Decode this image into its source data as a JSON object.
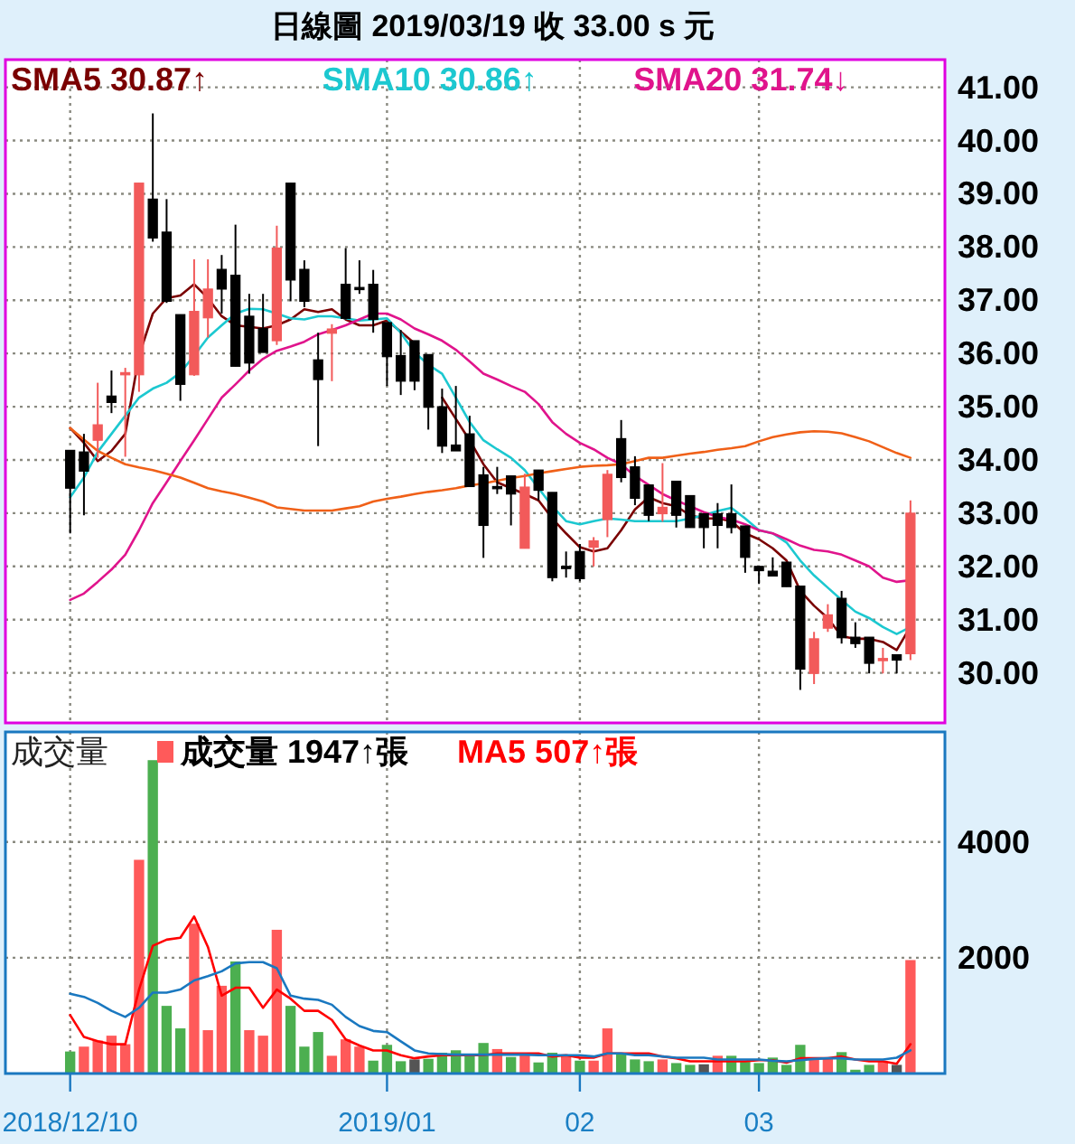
{
  "chart_data": [
    {
      "type": "candlestick",
      "title": "日線圖 2019/03/19 收 33.00 s 元",
      "categories": [
        "2018/12/10",
        null,
        null,
        null,
        null,
        null,
        null,
        null,
        null,
        null,
        null,
        null,
        null,
        null,
        null,
        null,
        null,
        null,
        null,
        null,
        null,
        null,
        null,
        "2019/01",
        null,
        null,
        null,
        null,
        null,
        null,
        null,
        null,
        null,
        null,
        null,
        null,
        null,
        "02",
        null,
        null,
        null,
        null,
        null,
        null,
        null,
        null,
        null,
        null,
        null,
        null,
        "03",
        null,
        null,
        null,
        null,
        null,
        null,
        null,
        null,
        null,
        null,
        null
      ],
      "ohlc": [
        [
          34.18,
          34.18,
          32.62,
          33.47
        ],
        [
          34.15,
          34.49,
          32.96,
          33.79
        ],
        [
          34.37,
          35.45,
          34.04,
          34.66
        ],
        [
          35.2,
          35.68,
          34.88,
          35.08
        ],
        [
          35.62,
          35.73,
          34.06,
          35.64
        ],
        [
          35.6,
          39.2,
          35.28,
          39.2
        ],
        [
          38.9,
          40.51,
          38.1,
          38.17
        ],
        [
          38.28,
          38.9,
          36.95,
          36.98
        ],
        [
          36.73,
          36.73,
          35.11,
          35.42
        ],
        [
          35.6,
          37.77,
          35.58,
          36.79
        ],
        [
          36.67,
          37.77,
          36.3,
          37.21
        ],
        [
          37.58,
          37.85,
          36.75,
          37.21
        ],
        [
          37.47,
          38.42,
          35.76,
          35.76
        ],
        [
          36.7,
          37.12,
          35.62,
          35.82
        ],
        [
          36.47,
          37.12,
          36.02,
          36.02
        ],
        [
          36.24,
          38.4,
          36.16,
          37.98
        ],
        [
          39.2,
          39.2,
          36.98,
          37.38
        ],
        [
          37.58,
          37.75,
          36.87,
          36.98
        ],
        [
          35.88,
          36.39,
          34.26,
          35.51
        ],
        [
          36.38,
          36.55,
          35.48,
          36.46
        ],
        [
          37.3,
          37.98,
          36.64,
          36.66
        ],
        [
          37.24,
          37.75,
          37.12,
          37.2
        ],
        [
          37.3,
          37.57,
          36.39,
          36.64
        ],
        [
          36.58,
          36.58,
          35.39,
          35.94
        ],
        [
          35.96,
          36.44,
          35.22,
          35.48
        ],
        [
          36.24,
          36.24,
          35.31,
          35.48
        ],
        [
          35.98,
          35.98,
          34.57,
          34.99
        ],
        [
          35.0,
          35.34,
          34.13,
          34.26
        ],
        [
          34.28,
          35.39,
          34.17,
          34.17
        ],
        [
          34.49,
          34.83,
          33.5,
          33.5
        ],
        [
          33.72,
          33.87,
          32.16,
          32.77
        ],
        [
          33.5,
          33.87,
          33.36,
          33.48
        ],
        [
          33.7,
          33.7,
          32.77,
          33.36
        ],
        [
          32.34,
          33.74,
          32.34,
          33.49
        ],
        [
          33.81,
          33.81,
          33.24,
          33.43
        ],
        [
          33.39,
          33.39,
          31.72,
          31.79
        ],
        [
          32.0,
          32.28,
          31.79,
          31.99
        ],
        [
          32.28,
          32.42,
          31.72,
          31.77
        ],
        [
          32.36,
          32.55,
          32.0,
          32.48
        ],
        [
          32.88,
          33.81,
          32.55,
          33.73
        ],
        [
          34.4,
          34.75,
          33.58,
          33.67
        ],
        [
          33.87,
          34.07,
          33.15,
          33.28
        ],
        [
          33.53,
          33.53,
          32.85,
          32.96
        ],
        [
          32.99,
          33.94,
          32.84,
          33.11
        ],
        [
          33.6,
          33.6,
          32.73,
          32.96
        ],
        [
          33.33,
          33.33,
          32.73,
          32.73
        ],
        [
          32.99,
          32.99,
          32.34,
          32.73
        ],
        [
          32.99,
          33.19,
          32.34,
          32.77
        ],
        [
          32.99,
          33.54,
          32.62,
          32.73
        ],
        [
          32.76,
          32.76,
          31.88,
          32.17
        ],
        [
          32.0,
          32.0,
          31.67,
          31.92
        ],
        [
          31.91,
          32.17,
          31.82,
          31.82
        ],
        [
          32.08,
          32.08,
          31.62,
          31.62
        ],
        [
          31.63,
          31.63,
          29.68,
          30.07
        ],
        [
          29.99,
          30.77,
          29.79,
          30.64
        ],
        [
          30.84,
          31.29,
          30.77,
          31.09
        ],
        [
          31.4,
          31.54,
          30.55,
          30.66
        ],
        [
          30.67,
          30.95,
          30.47,
          30.55
        ],
        [
          30.67,
          30.67,
          29.99,
          30.18
        ],
        [
          30.25,
          30.47,
          29.99,
          30.27
        ],
        [
          30.34,
          30.34,
          29.99,
          30.24
        ],
        [
          30.36,
          33.24,
          30.24,
          33.0
        ]
      ],
      "colors": [
        "#000000",
        "#000000",
        "#f25a5a",
        "#000000",
        "#f25a5a",
        "#f25a5a",
        "#000000",
        "#000000",
        "#000000",
        "#f25a5a",
        "#f25a5a",
        "#000000",
        "#000000",
        "#000000",
        "#000000",
        "#f25a5a",
        "#000000",
        "#000000",
        "#000000",
        "#f25a5a",
        "#000000",
        "#000000",
        "#000000",
        "#000000",
        "#000000",
        "#000000",
        "#000000",
        "#000000",
        "#000000",
        "#000000",
        "#000000",
        "#000000",
        "#000000",
        "#f25a5a",
        "#000000",
        "#000000",
        "#000000",
        "#000000",
        "#f25a5a",
        "#f25a5a",
        "#000000",
        "#000000",
        "#000000",
        "#f25a5a",
        "#000000",
        "#000000",
        "#000000",
        "#000000",
        "#000000",
        "#000000",
        "#000000",
        "#000000",
        "#000000",
        "#000000",
        "#f25a5a",
        "#f25a5a",
        "#000000",
        "#000000",
        "#000000",
        "#f25a5a",
        "#000000",
        "#f25a5a"
      ],
      "series": [
        {
          "name": "SMA5 30.87↑",
          "type": "line",
          "color": "#7a0000",
          "values": [
            34.6,
            34.32,
            33.98,
            34.17,
            34.49,
            35.96,
            36.75,
            37.04,
            37.09,
            37.3,
            37.04,
            36.7,
            36.53,
            36.5,
            36.47,
            36.53,
            36.64,
            36.83,
            36.78,
            36.83,
            36.64,
            36.53,
            36.53,
            36.62,
            36.41,
            36.19,
            null,
            35.17,
            34.77,
            34.37,
            33.92,
            33.58,
            33.47,
            33.36,
            33.24,
            32.9,
            32.62,
            32.36,
            32.28,
            32.34,
            32.68,
            33.07,
            33.3,
            33.19,
            33.13,
            32.96,
            32.9,
            32.9,
            32.85,
            32.62,
            32.51,
            32.34,
            32.11,
            31.54,
            31.26,
            31.03,
            30.69,
            30.64,
            30.64,
            30.58,
            30.43,
            30.87
          ]
        },
        {
          "name": "SMA10 30.86↑",
          "type": "line",
          "color": "#1cc8d0",
          "values": [
            33.3,
            33.67,
            34.15,
            34.49,
            34.83,
            35.17,
            35.34,
            35.45,
            35.64,
            35.96,
            36.3,
            36.53,
            36.75,
            36.84,
            36.83,
            36.75,
            36.66,
            36.64,
            36.7,
            36.7,
            36.66,
            36.62,
            36.64,
            36.66,
            36.39,
            36.02,
            35.79,
            35.62,
            35.17,
            34.71,
            34.37,
            34.2,
            34.04,
            33.81,
            33.47,
            33.13,
            32.85,
            32.79,
            32.85,
            32.9,
            32.88,
            32.85,
            32.85,
            32.85,
            32.85,
            32.9,
            32.96,
            33.04,
            33.1,
            32.9,
            32.68,
            32.62,
            32.45,
            32.11,
            31.83,
            31.6,
            31.37,
            31.15,
            31.03,
            30.86,
            30.73,
            30.86
          ]
        },
        {
          "name": "SMA20 31.74↓",
          "type": "line",
          "color": "#e0148c",
          "values": [
            31.37,
            31.49,
            31.71,
            31.94,
            32.22,
            32.68,
            33.19,
            33.58,
            33.98,
            34.37,
            34.77,
            35.17,
            35.42,
            35.68,
            35.9,
            36.05,
            36.13,
            36.22,
            36.36,
            36.44,
            36.53,
            36.64,
            36.75,
            36.75,
            36.64,
            36.47,
            36.36,
            36.24,
            36.07,
            35.85,
            35.62,
            35.51,
            35.39,
            35.28,
            35.05,
            34.71,
            34.49,
            34.32,
            34.2,
            34.04,
            33.92,
            33.7,
            33.53,
            33.36,
            33.24,
            33.13,
            33.02,
            32.93,
            32.88,
            32.79,
            32.68,
            32.62,
            32.51,
            32.39,
            32.31,
            32.28,
            32.22,
            32.11,
            32.0,
            31.79,
            31.71,
            31.74
          ]
        },
        {
          "type": "line",
          "color": "#f06018",
          "values": [
            34.6,
            34.38,
            34.17,
            34.04,
            33.92,
            33.86,
            33.81,
            33.74,
            33.67,
            33.57,
            33.47,
            33.41,
            33.36,
            33.29,
            33.22,
            33.11,
            33.08,
            33.05,
            33.05,
            33.05,
            33.09,
            33.13,
            33.22,
            33.27,
            33.31,
            33.36,
            33.4,
            33.43,
            33.47,
            33.52,
            33.56,
            33.61,
            33.66,
            33.7,
            33.75,
            33.79,
            33.83,
            33.87,
            33.89,
            33.9,
            33.92,
            33.98,
            34.04,
            34.04,
            34.08,
            34.12,
            34.15,
            34.19,
            34.22,
            34.26,
            34.35,
            34.43,
            34.48,
            34.52,
            34.54,
            34.53,
            34.5,
            34.43,
            34.35,
            34.24,
            34.13,
            34.04
          ]
        }
      ],
      "ylim": [
        29.06,
        41.52
      ],
      "yticks": [
        {
          "value": 30,
          "label": "30.00"
        },
        {
          "value": 31,
          "label": "31.00"
        },
        {
          "value": 32,
          "label": "32.00"
        },
        {
          "value": 33,
          "label": "33.00"
        },
        {
          "value": 34,
          "label": "34.00"
        },
        {
          "value": 35,
          "label": "35.00"
        },
        {
          "value": 36,
          "label": "36.00"
        },
        {
          "value": 37,
          "label": "37.00"
        },
        {
          "value": 38,
          "label": "38.00"
        },
        {
          "value": 39,
          "label": "39.00"
        },
        {
          "value": 40,
          "label": "40.00"
        },
        {
          "value": 41,
          "label": "41.00"
        }
      ],
      "tick_labels": "y",
      "grid": true,
      "legend": "top"
    },
    {
      "type": "bar",
      "title": "成交量",
      "categories": [
        "2018/12/10",
        null,
        null,
        null,
        null,
        null,
        null,
        null,
        null,
        null,
        null,
        null,
        null,
        null,
        null,
        null,
        null,
        null,
        null,
        null,
        null,
        null,
        null,
        "2019/01",
        null,
        null,
        null,
        null,
        null,
        null,
        null,
        null,
        null,
        null,
        null,
        null,
        null,
        "02",
        null,
        null,
        null,
        null,
        null,
        null,
        null,
        null,
        null,
        null,
        null,
        null,
        "03",
        null,
        null,
        null,
        null,
        null,
        null,
        null,
        null,
        null,
        null,
        null
      ],
      "series": [
        {
          "name": "成交量 1947↑張",
          "type": "bar",
          "values": [
            368,
            452,
            557,
            641,
            494,
            3679,
            5400,
            1156,
            767,
            2575,
            736,
            1503,
            1923,
            736,
            641,
            2470,
            1156,
            452,
            704,
            294,
            578,
            452,
            210,
            483,
            200,
            231,
            242,
            347,
            389,
            284,
            515,
            410,
            273,
            315,
            179,
            347,
            294,
            210,
            210,
            767,
            326,
            231,
            200,
            231,
            168,
            137,
            147,
            294,
            294,
            189,
            168,
            263,
            137,
            483,
            242,
            242,
            357,
            53,
            137,
            189,
            137,
            1947
          ],
          "colors": [
            "#4caf50",
            "#ff5a5a",
            "#ff5a5a",
            "#ff5a5a",
            "#ff5a5a",
            "#ff5a5a",
            "#4caf50",
            "#4caf50",
            "#4caf50",
            "#ff5a5a",
            "#ff5a5a",
            "#ff5a5a",
            "#4caf50",
            "#ff5a5a",
            "#ff5a5a",
            "#ff5a5a",
            "#4caf50",
            "#4caf50",
            "#4caf50",
            "#ff5a5a",
            "#ff5a5a",
            "#ff5a5a",
            "#4caf50",
            "#4caf50",
            "#4caf50",
            "#555555",
            "#4caf50",
            "#4caf50",
            "#4caf50",
            "#4caf50",
            "#4caf50",
            "#ff5a5a",
            "#4caf50",
            "#ff5a5a",
            "#4caf50",
            "#4caf50",
            "#ff5a5a",
            "#4caf50",
            "#ff5a5a",
            "#ff5a5a",
            "#4caf50",
            "#4caf50",
            "#4caf50",
            "#ff5a5a",
            "#4caf50",
            "#4caf50",
            "#555555",
            "#ff5a5a",
            "#4caf50",
            "#4caf50",
            "#4caf50",
            "#4caf50",
            "#4caf50",
            "#4caf50",
            "#ff5a5a",
            "#ff5a5a",
            "#4caf50",
            "#4caf50",
            "#4caf50",
            "#ff5a5a",
            "#555555",
            "#ff5a5a"
          ]
        },
        {
          "name": "MA5 507↑張",
          "type": "line",
          "color": "#ff0000",
          "values": [
            1009,
            631,
            557,
            505,
            505,
            1450,
            2207,
            2312,
            2344,
            2712,
            2186,
            1345,
            1482,
            1482,
            1135,
            1450,
            1293,
            1083,
            1083,
            925,
            589,
            483,
            399,
            399,
            315,
            263,
            294,
            315,
            315,
            315,
            315,
            347,
            347,
            347,
            347,
            294,
            315,
            273,
            273,
            347,
            347,
            347,
            347,
            294,
            263,
            210,
            210,
            210,
            210,
            210,
            231,
            231,
            189,
            263,
            263,
            263,
            294,
            242,
            210,
            210,
            168,
            507
          ]
        },
        {
          "type": "line",
          "color": "#1a78c0",
          "values": [
            1377,
            1324,
            1219,
            1083,
            977,
            1135,
            1398,
            1398,
            1450,
            1608,
            1682,
            1766,
            1902,
            1923,
            1923,
            1818,
            1345,
            1293,
            1272,
            1188,
            977,
            820,
            736,
            715,
            557,
            399,
            347,
            336,
            326,
            326,
            326,
            326,
            326,
            326,
            315,
            315,
            315,
            315,
            294,
            347,
            347,
            315,
            315,
            294,
            273,
            273,
            273,
            242,
            242,
            242,
            242,
            221,
            210,
            231,
            252,
            263,
            263,
            242,
            242,
            242,
            273,
            399
          ]
        }
      ],
      "ylim": [
        0,
        5900
      ],
      "yticks": [
        2000,
        4000
      ],
      "grid": true,
      "legend": "top"
    }
  ]
}
